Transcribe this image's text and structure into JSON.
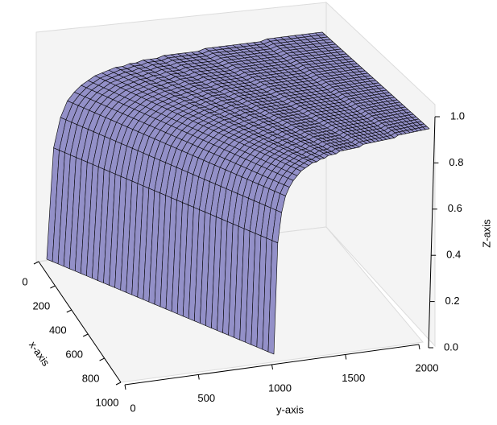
{
  "chart_data": {
    "type": "surface",
    "x_label": "x-axis",
    "y_label": "y-axis",
    "z_label": "Z-axis",
    "x": [
      0,
      25,
      50,
      75,
      100,
      125,
      150,
      175,
      200,
      225,
      250,
      275,
      300,
      325,
      350,
      375,
      400,
      425,
      450,
      475,
      500,
      525,
      550,
      575,
      600,
      625,
      650,
      675,
      700,
      725,
      750,
      775,
      800,
      825,
      850,
      875,
      900,
      925,
      950,
      975,
      1000
    ],
    "y": [
      0,
      50,
      100,
      150,
      200,
      250,
      300,
      350,
      400,
      450,
      500,
      550,
      600,
      650,
      700,
      750,
      800,
      850,
      900,
      950,
      1000,
      1050,
      1100,
      1150,
      1200,
      1250,
      1300,
      1350,
      1400,
      1450,
      1500,
      1550,
      1600,
      1650,
      1700,
      1750,
      1800,
      1850,
      1900,
      1950,
      2000
    ],
    "z": [
      0,
      0.56,
      0.71,
      0.79,
      0.83,
      0.86,
      0.88,
      0.9,
      0.91,
      0.92,
      0.93,
      0.93,
      0.94,
      0.94,
      0.95,
      0.95,
      0.95,
      0.96,
      0.96,
      0.96,
      0.96,
      0.96,
      0.96,
      0.97,
      0.97,
      0.97,
      0.97,
      0.97,
      0.97,
      0.97,
      0.97,
      0.97,
      0.98,
      0.98,
      0.98,
      0.98,
      0.98,
      0.98,
      0.98,
      0.98,
      0.98
    ],
    "color": "#9390c8",
    "xlim": [
      0,
      1000
    ],
    "ylim": [
      0,
      2000
    ],
    "zlim": [
      0,
      1
    ],
    "xticks": [
      0,
      200,
      400,
      600,
      800,
      1000
    ],
    "yticks": [
      0,
      500,
      1000,
      1500,
      2000
    ],
    "zticks": [
      {
        "value": 0,
        "label": "0.0"
      },
      0.2,
      0.4,
      0.6,
      0.8,
      {
        "value": 1,
        "label": "1.0"
      }
    ]
  }
}
